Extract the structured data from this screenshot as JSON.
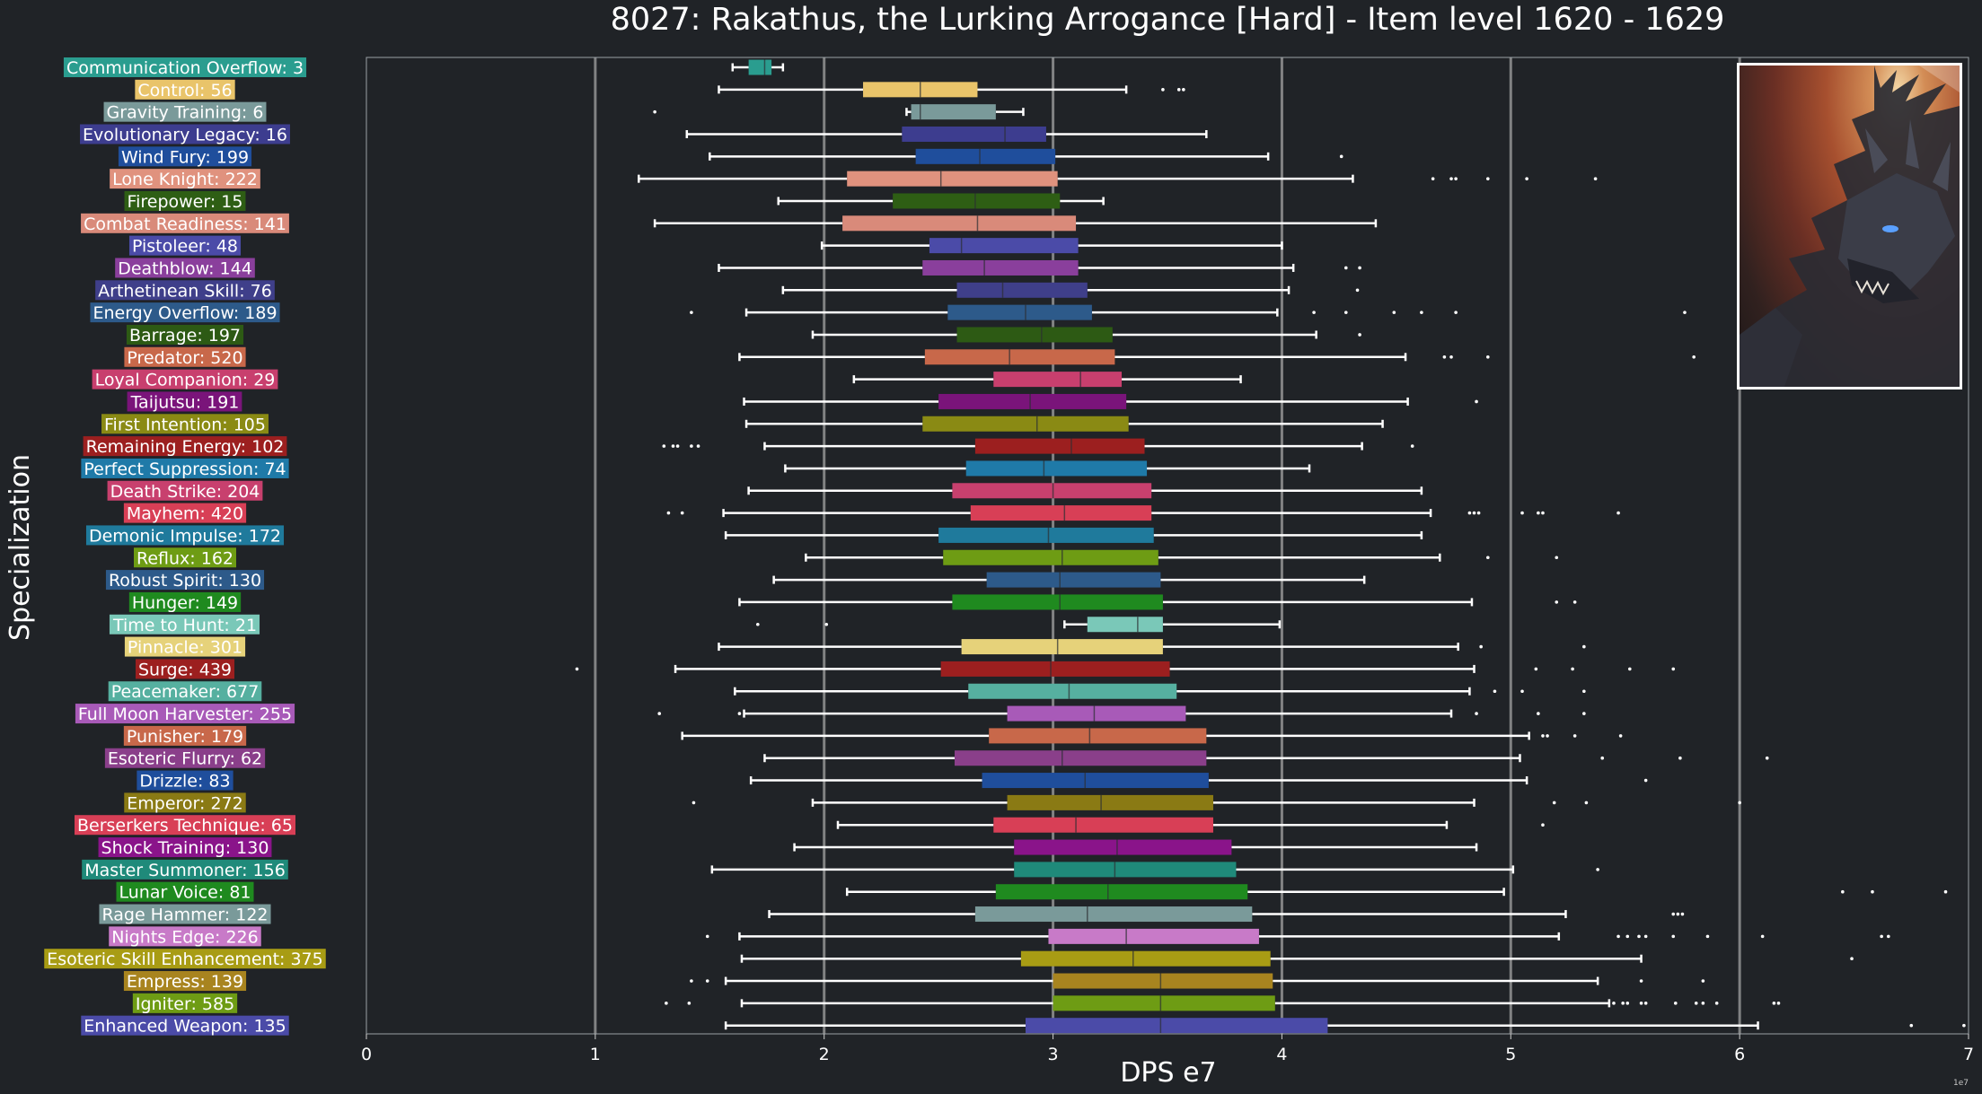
{
  "title": "8027: Rakathus, the Lurking Arrogance [Hard] - Item level 1620 - 1629",
  "chart_data": {
    "type": "boxplot",
    "orientation": "horizontal",
    "title": "8027: Rakathus, the Lurking Arrogance [Hard] - Item level 1620 - 1629",
    "xlabel": "DPS e7",
    "ylabel": "Specialization",
    "x_scale_label": "1e7",
    "xlim": [
      0,
      7
    ],
    "xticks": [
      "0",
      "1",
      "2",
      "3",
      "4",
      "5",
      "6",
      "7"
    ],
    "grid": "vertical",
    "series": [
      {
        "label": "Communication Overflow: 3",
        "color": "#2a9d8f",
        "whislo": 1.6,
        "q1": 1.67,
        "med": 1.74,
        "q3": 1.77,
        "whishi": 1.82,
        "fliers": []
      },
      {
        "label": "Control: 56",
        "color": "#e9c46a",
        "whislo": 1.54,
        "q1": 2.17,
        "med": 2.42,
        "q3": 2.67,
        "whishi": 3.32,
        "fliers": [
          3.48,
          3.55,
          3.57
        ]
      },
      {
        "label": "Gravity Training: 6",
        "color": "#7a9a9a",
        "whislo": 2.36,
        "q1": 2.38,
        "med": 2.42,
        "q3": 2.75,
        "whishi": 2.87,
        "fliers": [
          1.26
        ]
      },
      {
        "label": "Evolutionary Legacy: 16",
        "color": "#3d3d8f",
        "whislo": 1.4,
        "q1": 2.34,
        "med": 2.79,
        "q3": 2.97,
        "whishi": 3.67,
        "fliers": []
      },
      {
        "label": "Wind Fury: 199",
        "color": "#1f4e9c",
        "whislo": 1.5,
        "q1": 2.4,
        "med": 2.68,
        "q3": 3.01,
        "whishi": 3.94,
        "fliers": [
          4.26
        ]
      },
      {
        "label": "Lone Knight: 222",
        "color": "#e0927e",
        "whislo": 1.19,
        "q1": 2.1,
        "med": 2.51,
        "q3": 3.02,
        "whishi": 4.31,
        "fliers": [
          4.66,
          4.74,
          4.76,
          4.9,
          5.07,
          5.37
        ]
      },
      {
        "label": "Firepower: 15",
        "color": "#2e5e14",
        "whislo": 1.8,
        "q1": 2.3,
        "med": 2.66,
        "q3": 3.03,
        "whishi": 3.22,
        "fliers": []
      },
      {
        "label": "Combat Readiness: 141",
        "color": "#d98a7a",
        "whislo": 1.26,
        "q1": 2.08,
        "med": 2.67,
        "q3": 3.1,
        "whishi": 4.41,
        "fliers": []
      },
      {
        "label": "Pistoleer: 48",
        "color": "#4b4ba8",
        "whislo": 1.99,
        "q1": 2.46,
        "med": 2.6,
        "q3": 3.11,
        "whishi": 4.0,
        "fliers": []
      },
      {
        "label": "Deathblow: 144",
        "color": "#8a3f9c",
        "whislo": 1.54,
        "q1": 2.43,
        "med": 2.7,
        "q3": 3.11,
        "whishi": 4.05,
        "fliers": [
          4.28,
          4.34
        ]
      },
      {
        "label": "Arthetinean Skill: 76",
        "color": "#3f3f8a",
        "whislo": 1.82,
        "q1": 2.58,
        "med": 2.78,
        "q3": 3.15,
        "whishi": 4.03,
        "fliers": [
          4.33
        ]
      },
      {
        "label": "Energy Overflow: 189",
        "color": "#2d5a8a",
        "whislo": 1.66,
        "q1": 2.54,
        "med": 2.88,
        "q3": 3.17,
        "whishi": 3.98,
        "fliers": [
          1.42,
          4.14,
          4.28,
          4.49,
          4.61,
          4.76,
          5.76
        ]
      },
      {
        "label": "Barrage: 197",
        "color": "#2d5a14",
        "whislo": 1.95,
        "q1": 2.58,
        "med": 2.95,
        "q3": 3.26,
        "whishi": 4.15,
        "fliers": [
          4.34
        ]
      },
      {
        "label": "Predator: 520",
        "color": "#c8684a",
        "whislo": 1.63,
        "q1": 2.44,
        "med": 2.81,
        "q3": 3.27,
        "whishi": 4.54,
        "fliers": [
          4.71,
          4.74,
          4.9,
          5.8
        ]
      },
      {
        "label": "Loyal Companion: 29",
        "color": "#c83f6e",
        "whislo": 2.13,
        "q1": 2.74,
        "med": 3.12,
        "q3": 3.3,
        "whishi": 3.82,
        "fliers": []
      },
      {
        "label": "Taijutsu: 191",
        "color": "#7a147a",
        "whislo": 1.65,
        "q1": 2.5,
        "med": 2.9,
        "q3": 3.32,
        "whishi": 4.55,
        "fliers": [
          4.85
        ]
      },
      {
        "label": "First Intention: 105",
        "color": "#8a8a14",
        "whislo": 1.66,
        "q1": 2.43,
        "med": 2.93,
        "q3": 3.33,
        "whishi": 4.44,
        "fliers": []
      },
      {
        "label": "Remaining Energy: 102",
        "color": "#9c1f1f",
        "whislo": 1.74,
        "q1": 2.66,
        "med": 3.08,
        "q3": 3.4,
        "whishi": 4.35,
        "fliers": [
          1.3,
          1.34,
          1.36,
          1.42,
          1.45,
          4.57
        ]
      },
      {
        "label": "Perfect Suppression: 74",
        "color": "#1f7aa8",
        "whislo": 1.83,
        "q1": 2.62,
        "med": 2.96,
        "q3": 3.41,
        "whishi": 4.12,
        "fliers": []
      },
      {
        "label": "Death Strike: 204",
        "color": "#c8406e",
        "whislo": 1.67,
        "q1": 2.56,
        "med": 3.0,
        "q3": 3.43,
        "whishi": 4.61,
        "fliers": []
      },
      {
        "label": "Mayhem: 420",
        "color": "#d83f56",
        "whislo": 1.56,
        "q1": 2.64,
        "med": 3.05,
        "q3": 3.43,
        "whishi": 4.65,
        "fliers": [
          1.32,
          1.38,
          4.82,
          4.84,
          4.86,
          5.05,
          5.12,
          5.14,
          5.47
        ]
      },
      {
        "label": "Demonic Impulse: 172",
        "color": "#1f7a9c",
        "whislo": 1.57,
        "q1": 2.5,
        "med": 2.98,
        "q3": 3.44,
        "whishi": 4.61,
        "fliers": []
      },
      {
        "label": "Reflux: 162",
        "color": "#6e9c14",
        "whislo": 1.92,
        "q1": 2.52,
        "med": 3.04,
        "q3": 3.46,
        "whishi": 4.69,
        "fliers": [
          4.9,
          5.2
        ]
      },
      {
        "label": "Robust Spirit: 130",
        "color": "#2d5a8a",
        "whislo": 1.78,
        "q1": 2.71,
        "med": 3.03,
        "q3": 3.47,
        "whishi": 4.36,
        "fliers": []
      },
      {
        "label": "Hunger: 149",
        "color": "#1f8a1f",
        "whislo": 1.63,
        "q1": 2.56,
        "med": 3.03,
        "q3": 3.48,
        "whishi": 4.83,
        "fliers": [
          5.2,
          5.28
        ]
      },
      {
        "label": "Time to Hunt: 21",
        "color": "#7ac8b8",
        "whislo": 3.05,
        "q1": 3.15,
        "med": 3.37,
        "q3": 3.48,
        "whishi": 3.99,
        "fliers": [
          1.71,
          2.01
        ]
      },
      {
        "label": "Pinnacle: 301",
        "color": "#e6d27a",
        "whislo": 1.54,
        "q1": 2.6,
        "med": 3.02,
        "q3": 3.48,
        "whishi": 4.77,
        "fliers": [
          4.87,
          5.32
        ]
      },
      {
        "label": "Surge: 439",
        "color": "#9c1f1f",
        "whislo": 1.35,
        "q1": 2.51,
        "med": 2.99,
        "q3": 3.51,
        "whishi": 4.84,
        "fliers": [
          0.92,
          5.11,
          5.27,
          5.52,
          5.71
        ]
      },
      {
        "label": "Peacemaker: 677",
        "color": "#56b0a0",
        "whislo": 1.61,
        "q1": 2.63,
        "med": 3.07,
        "q3": 3.54,
        "whishi": 4.82,
        "fliers": [
          4.93,
          5.05,
          5.32
        ]
      },
      {
        "label": "Full Moon Harvester: 255",
        "color": "#a85ab8",
        "whislo": 1.65,
        "q1": 2.8,
        "med": 3.18,
        "q3": 3.58,
        "whishi": 4.74,
        "fliers": [
          1.28,
          1.63,
          4.85,
          5.12,
          5.32
        ]
      },
      {
        "label": "Punisher: 179",
        "color": "#c8684a",
        "whislo": 1.38,
        "q1": 2.72,
        "med": 3.16,
        "q3": 3.67,
        "whishi": 5.08,
        "fliers": [
          5.14,
          5.16,
          5.28,
          5.48
        ]
      },
      {
        "label": "Esoteric Flurry: 62",
        "color": "#8a3f8a",
        "whislo": 1.74,
        "q1": 2.57,
        "med": 3.04,
        "q3": 3.67,
        "whishi": 5.04,
        "fliers": [
          5.4,
          5.74,
          6.12
        ]
      },
      {
        "label": "Drizzle: 83",
        "color": "#1f4e9c",
        "whislo": 1.68,
        "q1": 2.69,
        "med": 3.14,
        "q3": 3.68,
        "whishi": 5.07,
        "fliers": [
          5.59
        ]
      },
      {
        "label": "Emperor: 272",
        "color": "#8a7a14",
        "whislo": 1.95,
        "q1": 2.8,
        "med": 3.21,
        "q3": 3.7,
        "whishi": 4.84,
        "fliers": [
          1.43,
          5.19,
          5.33,
          6.0
        ]
      },
      {
        "label": "Berserkers Technique: 65",
        "color": "#d83f56",
        "whislo": 2.06,
        "q1": 2.74,
        "med": 3.1,
        "q3": 3.7,
        "whishi": 4.72,
        "fliers": [
          5.14
        ]
      },
      {
        "label": "Shock Training: 130",
        "color": "#8a148a",
        "whislo": 1.87,
        "q1": 2.83,
        "med": 3.28,
        "q3": 3.78,
        "whishi": 4.85,
        "fliers": []
      },
      {
        "label": "Master Summoner: 156",
        "color": "#1f8a7a",
        "whislo": 1.51,
        "q1": 2.83,
        "med": 3.27,
        "q3": 3.8,
        "whishi": 5.01,
        "fliers": [
          5.38
        ]
      },
      {
        "label": "Lunar Voice: 81",
        "color": "#1f8a1f",
        "whislo": 2.1,
        "q1": 2.75,
        "med": 3.24,
        "q3": 3.85,
        "whishi": 4.97,
        "fliers": [
          6.45,
          6.58,
          6.9
        ]
      },
      {
        "label": "Rage Hammer: 122",
        "color": "#7a9a9a",
        "whislo": 1.76,
        "q1": 2.66,
        "med": 3.15,
        "q3": 3.87,
        "whishi": 5.24,
        "fliers": [
          5.71,
          5.73,
          5.75
        ]
      },
      {
        "label": "Nights Edge: 226",
        "color": "#c87ac8",
        "whislo": 1.63,
        "q1": 2.98,
        "med": 3.32,
        "q3": 3.9,
        "whishi": 5.21,
        "fliers": [
          1.49,
          5.47,
          5.51,
          5.56,
          5.59,
          5.71,
          5.86,
          6.1,
          6.62,
          6.65
        ]
      },
      {
        "label": "Esoteric Skill Enhancement: 375",
        "color": "#a89c14",
        "whislo": 1.64,
        "q1": 2.86,
        "med": 3.35,
        "q3": 3.95,
        "whishi": 5.57,
        "fliers": [
          6.49
        ]
      },
      {
        "label": "Empress: 139",
        "color": "#a8841f",
        "whislo": 1.57,
        "q1": 3.0,
        "med": 3.47,
        "q3": 3.96,
        "whishi": 5.38,
        "fliers": [
          1.42,
          1.49,
          5.57,
          5.84
        ]
      },
      {
        "label": "Igniter: 585",
        "color": "#6e9c14",
        "whislo": 1.64,
        "q1": 3.0,
        "med": 3.47,
        "q3": 3.97,
        "whishi": 5.43,
        "fliers": [
          1.31,
          1.41,
          5.45,
          5.49,
          5.51,
          5.57,
          5.59,
          5.72,
          5.81,
          5.84,
          5.9,
          6.15,
          6.17
        ]
      },
      {
        "label": "Enhanced Weapon: 135",
        "color": "#4b4ba8",
        "whislo": 1.57,
        "q1": 2.88,
        "med": 3.47,
        "q3": 4.2,
        "whishi": 6.08,
        "fliers": [
          6.75,
          6.98
        ]
      }
    ]
  }
}
